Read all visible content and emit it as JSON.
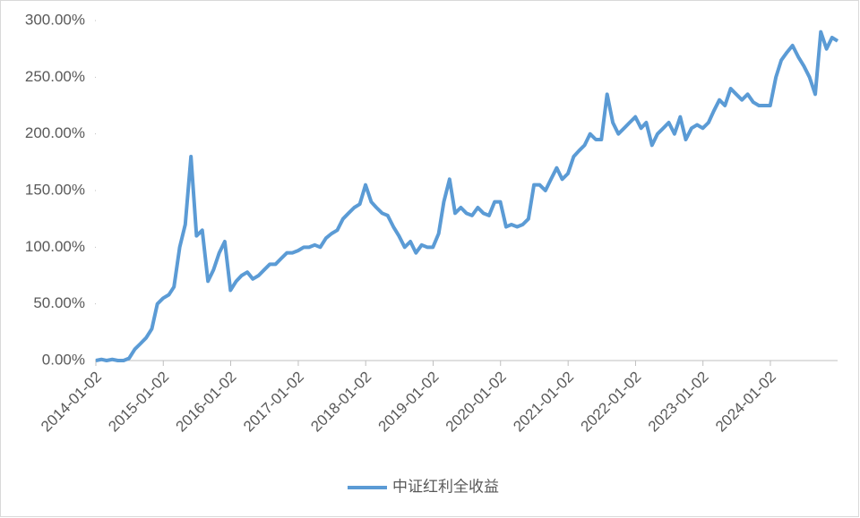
{
  "chart_data": {
    "type": "line",
    "x": [
      "2014-01-02",
      "2014-02-01",
      "2014-03-01",
      "2014-04-01",
      "2014-05-01",
      "2014-06-01",
      "2014-07-01",
      "2014-08-01",
      "2014-09-01",
      "2014-10-01",
      "2014-11-01",
      "2014-12-01",
      "2015-01-01",
      "2015-02-01",
      "2015-03-01",
      "2015-04-01",
      "2015-05-01",
      "2015-06-01",
      "2015-07-01",
      "2015-08-01",
      "2015-09-01",
      "2015-10-01",
      "2015-11-01",
      "2015-12-01",
      "2016-01-01",
      "2016-02-01",
      "2016-03-01",
      "2016-04-01",
      "2016-05-01",
      "2016-06-01",
      "2016-07-01",
      "2016-08-01",
      "2016-09-01",
      "2016-10-01",
      "2016-11-01",
      "2016-12-01",
      "2017-01-01",
      "2017-02-01",
      "2017-03-01",
      "2017-04-01",
      "2017-05-01",
      "2017-06-01",
      "2017-07-01",
      "2017-08-01",
      "2017-09-01",
      "2017-10-01",
      "2017-11-01",
      "2017-12-01",
      "2018-01-01",
      "2018-02-01",
      "2018-03-01",
      "2018-04-01",
      "2018-05-01",
      "2018-06-01",
      "2018-07-01",
      "2018-08-01",
      "2018-09-01",
      "2018-10-01",
      "2018-11-01",
      "2018-12-01",
      "2019-01-01",
      "2019-02-01",
      "2019-03-01",
      "2019-04-01",
      "2019-05-01",
      "2019-06-01",
      "2019-07-01",
      "2019-08-01",
      "2019-09-01",
      "2019-10-01",
      "2019-11-01",
      "2019-12-01",
      "2020-01-01",
      "2020-02-01",
      "2020-03-01",
      "2020-04-01",
      "2020-05-01",
      "2020-06-01",
      "2020-07-01",
      "2020-08-01",
      "2020-09-01",
      "2020-10-01",
      "2020-11-01",
      "2020-12-01",
      "2021-01-01",
      "2021-02-01",
      "2021-03-01",
      "2021-04-01",
      "2021-05-01",
      "2021-06-01",
      "2021-07-01",
      "2021-08-01",
      "2021-09-01",
      "2021-10-01",
      "2021-11-01",
      "2021-12-01",
      "2022-01-01",
      "2022-02-01",
      "2022-03-01",
      "2022-04-01",
      "2022-05-01",
      "2022-06-01",
      "2022-07-01",
      "2022-08-01",
      "2022-09-01",
      "2022-10-01",
      "2022-11-01",
      "2022-12-01",
      "2023-01-01",
      "2023-02-01",
      "2023-03-01",
      "2023-04-01",
      "2023-05-01",
      "2023-06-01",
      "2023-07-01",
      "2023-08-01",
      "2023-09-01",
      "2023-10-01",
      "2023-11-01",
      "2023-12-01",
      "2024-01-01",
      "2024-02-01",
      "2024-03-01",
      "2024-04-01",
      "2024-05-01",
      "2024-06-01",
      "2024-07-01",
      "2024-08-01",
      "2024-09-01",
      "2024-10-01",
      "2024-11-01",
      "2024-12-01",
      "2024-12-31"
    ],
    "series": [
      {
        "name": "中证红利全收益",
        "color": "#5b9bd5",
        "values": [
          0,
          1,
          0,
          1,
          0,
          0,
          2,
          10,
          15,
          20,
          28,
          50,
          55,
          58,
          65,
          100,
          120,
          180,
          110,
          115,
          70,
          80,
          95,
          105,
          62,
          70,
          75,
          78,
          72,
          75,
          80,
          85,
          85,
          90,
          95,
          95,
          97,
          100,
          100,
          102,
          100,
          108,
          112,
          115,
          125,
          130,
          135,
          138,
          155,
          140,
          135,
          130,
          128,
          118,
          110,
          100,
          105,
          95,
          102,
          100,
          100,
          112,
          140,
          160,
          130,
          135,
          130,
          128,
          135,
          130,
          128,
          140,
          140,
          118,
          120,
          118,
          120,
          125,
          155,
          155,
          150,
          160,
          170,
          160,
          165,
          180,
          185,
          190,
          200,
          195,
          195,
          235,
          210,
          200,
          205,
          210,
          215,
          205,
          210,
          190,
          200,
          205,
          210,
          200,
          215,
          195,
          205,
          208,
          205,
          210,
          220,
          230,
          225,
          240,
          235,
          230,
          235,
          228,
          225,
          225,
          225,
          250,
          265,
          272,
          278,
          268,
          260,
          250,
          235,
          290,
          275,
          285,
          282
        ]
      }
    ],
    "xlim": [
      "2014-01-02",
      "2024-12-31"
    ],
    "xticks": [
      "2014-01-02",
      "2015-01-02",
      "2016-01-02",
      "2017-01-02",
      "2018-01-02",
      "2019-01-02",
      "2020-01-02",
      "2021-01-02",
      "2022-01-02",
      "2023-01-02",
      "2024-01-02"
    ],
    "ylim": [
      0,
      300
    ],
    "yticks": [
      {
        "value": 0,
        "label": "0.00%"
      },
      {
        "value": 50,
        "label": "50.00%"
      },
      {
        "value": 100,
        "label": "100.00%"
      },
      {
        "value": 150,
        "label": "150.00%"
      },
      {
        "value": 200,
        "label": "200.00%"
      },
      {
        "value": 250,
        "label": "250.00%"
      },
      {
        "value": 300,
        "label": "300.00%"
      }
    ],
    "legend": "bottom"
  }
}
